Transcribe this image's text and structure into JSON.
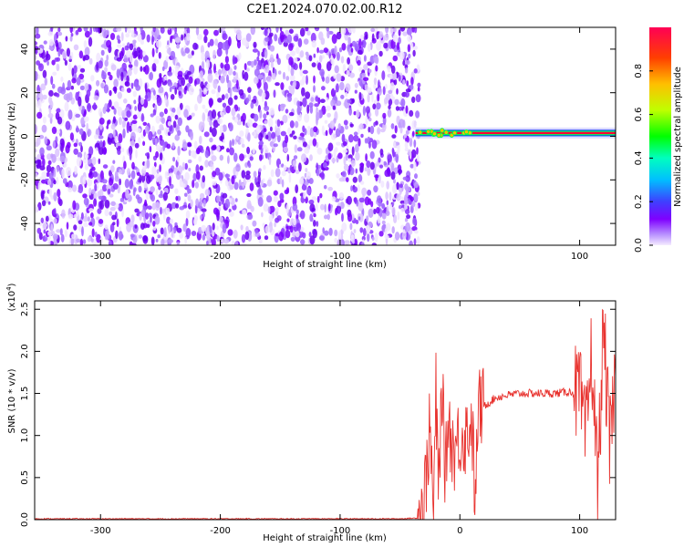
{
  "title": "C2E1.2024.070.02.00.R12",
  "chart_data": [
    {
      "type": "heatmap",
      "xlabel": "Height of straight line (km)",
      "ylabel": "Frequency (Hz)",
      "xlim": [
        -355,
        130
      ],
      "ylim": [
        -50,
        50
      ],
      "xticks": [
        "-300",
        "-200",
        "-100",
        "0",
        "100"
      ],
      "yticks": [
        "-40",
        "-20",
        "0",
        "20",
        "40"
      ],
      "colorbar": {
        "label": "Normalized spectral amplitude",
        "ticks": [
          "0.0",
          "0.2",
          "0.4",
          "0.6",
          "0.8"
        ],
        "range": [
          0,
          1
        ],
        "colors": [
          "#f4ecff",
          "#b890ff",
          "#7f00ff",
          "#3f3fff",
          "#00bfff",
          "#00ffbf",
          "#00ff00",
          "#bfff00",
          "#ffbf00",
          "#ff3f00",
          "#ff0055"
        ]
      },
      "regions": [
        {
          "x_range": [
            -355,
            -37
          ],
          "description_values": "broadband noise 0.0-0.4 across all frequencies"
        },
        {
          "x_range": [
            -37,
            130
          ],
          "carrier_frequency_hz": 1.5,
          "peak_amplitude": 1.0
        }
      ]
    },
    {
      "type": "line",
      "xlabel": "Height of straight line (km)",
      "ylabel": "SNR (10 * v/v)",
      "yscale_label": "(x10",
      "yscale_exp": "4",
      "yscale_close": ")",
      "xlim": [
        -355,
        130
      ],
      "ylim": [
        0,
        2.6
      ],
      "xticks": [
        "-300",
        "-200",
        "-100",
        "0",
        "100"
      ],
      "yticks": [
        "0.0",
        "0.5",
        "1.0",
        "1.5",
        "2.0",
        "2.5"
      ],
      "line_color": "#e8322e",
      "x": [
        -355,
        -300,
        -250,
        -200,
        -150,
        -100,
        -50,
        -35,
        -30,
        -25,
        -22,
        -20,
        -18,
        -15,
        -12,
        -10,
        -5,
        0,
        5,
        10,
        13,
        15,
        20,
        25,
        30,
        40,
        50,
        60,
        70,
        80,
        90,
        100,
        105,
        110,
        115,
        120,
        125,
        130
      ],
      "values": [
        0.01,
        0.01,
        0.01,
        0.01,
        0.01,
        0.01,
        0.01,
        0.02,
        0.2,
        1.1,
        0.05,
        1.5,
        0.3,
        1.6,
        0.5,
        1.2,
        0.8,
        1.0,
        1.0,
        1.2,
        0.1,
        1.3,
        1.35,
        1.4,
        1.45,
        1.48,
        1.5,
        1.5,
        1.5,
        1.5,
        1.52,
        1.5,
        0.9,
        2.0,
        0.4,
        2.3,
        0.8,
        1.7
      ]
    }
  ]
}
